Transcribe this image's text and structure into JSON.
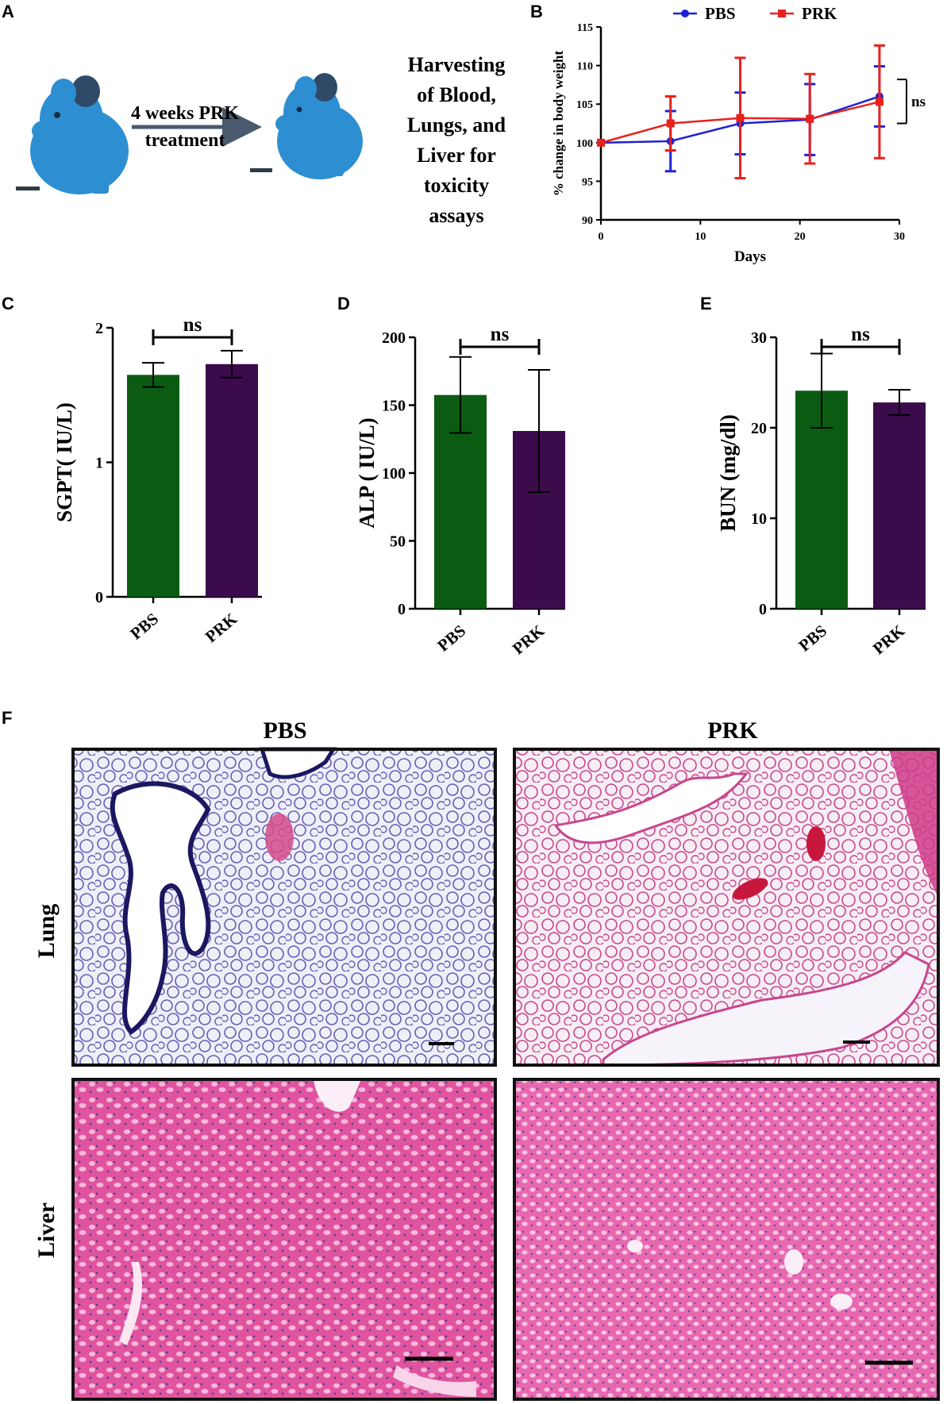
{
  "panels": {
    "A": {
      "label": "A",
      "arrow_text": [
        "4 weeks PRK",
        "treatment"
      ],
      "harvest_text": [
        "Harvesting",
        "of Blood,",
        "Lungs, and",
        "Liver for",
        "toxicity",
        "assays"
      ]
    },
    "B": {
      "label": "B"
    },
    "C": {
      "label": "C"
    },
    "D": {
      "label": "D"
    },
    "E": {
      "label": "E"
    },
    "F": {
      "label": "F",
      "col_titles": [
        "PBS",
        "PRK"
      ],
      "row_titles": [
        "Lung",
        "Liver"
      ]
    }
  },
  "colors": {
    "pbs_line": "#1f22d4",
    "prk_line": "#e8211d",
    "pbs_bar": "#0b5c12",
    "prk_bar": "#3c0b4b",
    "lung_bg": "#e9ecf6",
    "lung_tissue_pbs": "#5b4ea8",
    "lung_tissue_prk": "#c23a86",
    "liver_bg": "#e25aa6",
    "liver_cell": "#f7a7d6"
  },
  "chart_data": [
    {
      "id": "B",
      "type": "line",
      "xlabel": "Days",
      "ylabel": "% change in body weight",
      "xlim": [
        0,
        30
      ],
      "ylim": [
        90,
        115
      ],
      "xticks": [
        0,
        10,
        20,
        30
      ],
      "yticks": [
        90,
        95,
        100,
        105,
        110,
        115
      ],
      "legend": "top",
      "annotation": "ns",
      "series": [
        {
          "name": "PBS",
          "x": [
            0,
            7,
            14,
            21,
            28
          ],
          "y": [
            100,
            100.2,
            102.5,
            103.0,
            106.0
          ],
          "err": [
            0,
            3.9,
            4.0,
            4.6,
            3.9
          ]
        },
        {
          "name": "PRK",
          "x": [
            0,
            7,
            14,
            21,
            28
          ],
          "y": [
            100,
            102.5,
            103.2,
            103.1,
            105.3
          ],
          "err": [
            0,
            3.5,
            7.8,
            5.8,
            7.3
          ]
        }
      ]
    },
    {
      "id": "C",
      "type": "bar",
      "ylabel": "SGPT( IU/L)",
      "categories": [
        "PBS",
        "PRK"
      ],
      "values": [
        1.65,
        1.73
      ],
      "err": [
        0.09,
        0.1
      ],
      "ylim": [
        0,
        2
      ],
      "yticks": [
        0,
        1,
        2
      ],
      "annotation": "ns"
    },
    {
      "id": "D",
      "type": "bar",
      "ylabel": "ALP ( IU/L)",
      "categories": [
        "PBS",
        "PRK"
      ],
      "values": [
        157.5,
        131
      ],
      "err": [
        28,
        45
      ],
      "ylim": [
        0,
        200
      ],
      "yticks": [
        0,
        50,
        100,
        150,
        200
      ],
      "annotation": "ns"
    },
    {
      "id": "E",
      "type": "bar",
      "ylabel": "BUN (mg/dl)",
      "categories": [
        "PBS",
        "PRK"
      ],
      "values": [
        24.1,
        22.8
      ],
      "err": [
        4.1,
        1.4
      ],
      "ylim": [
        0,
        30
      ],
      "yticks": [
        0,
        10,
        20,
        30
      ],
      "annotation": "ns"
    }
  ]
}
